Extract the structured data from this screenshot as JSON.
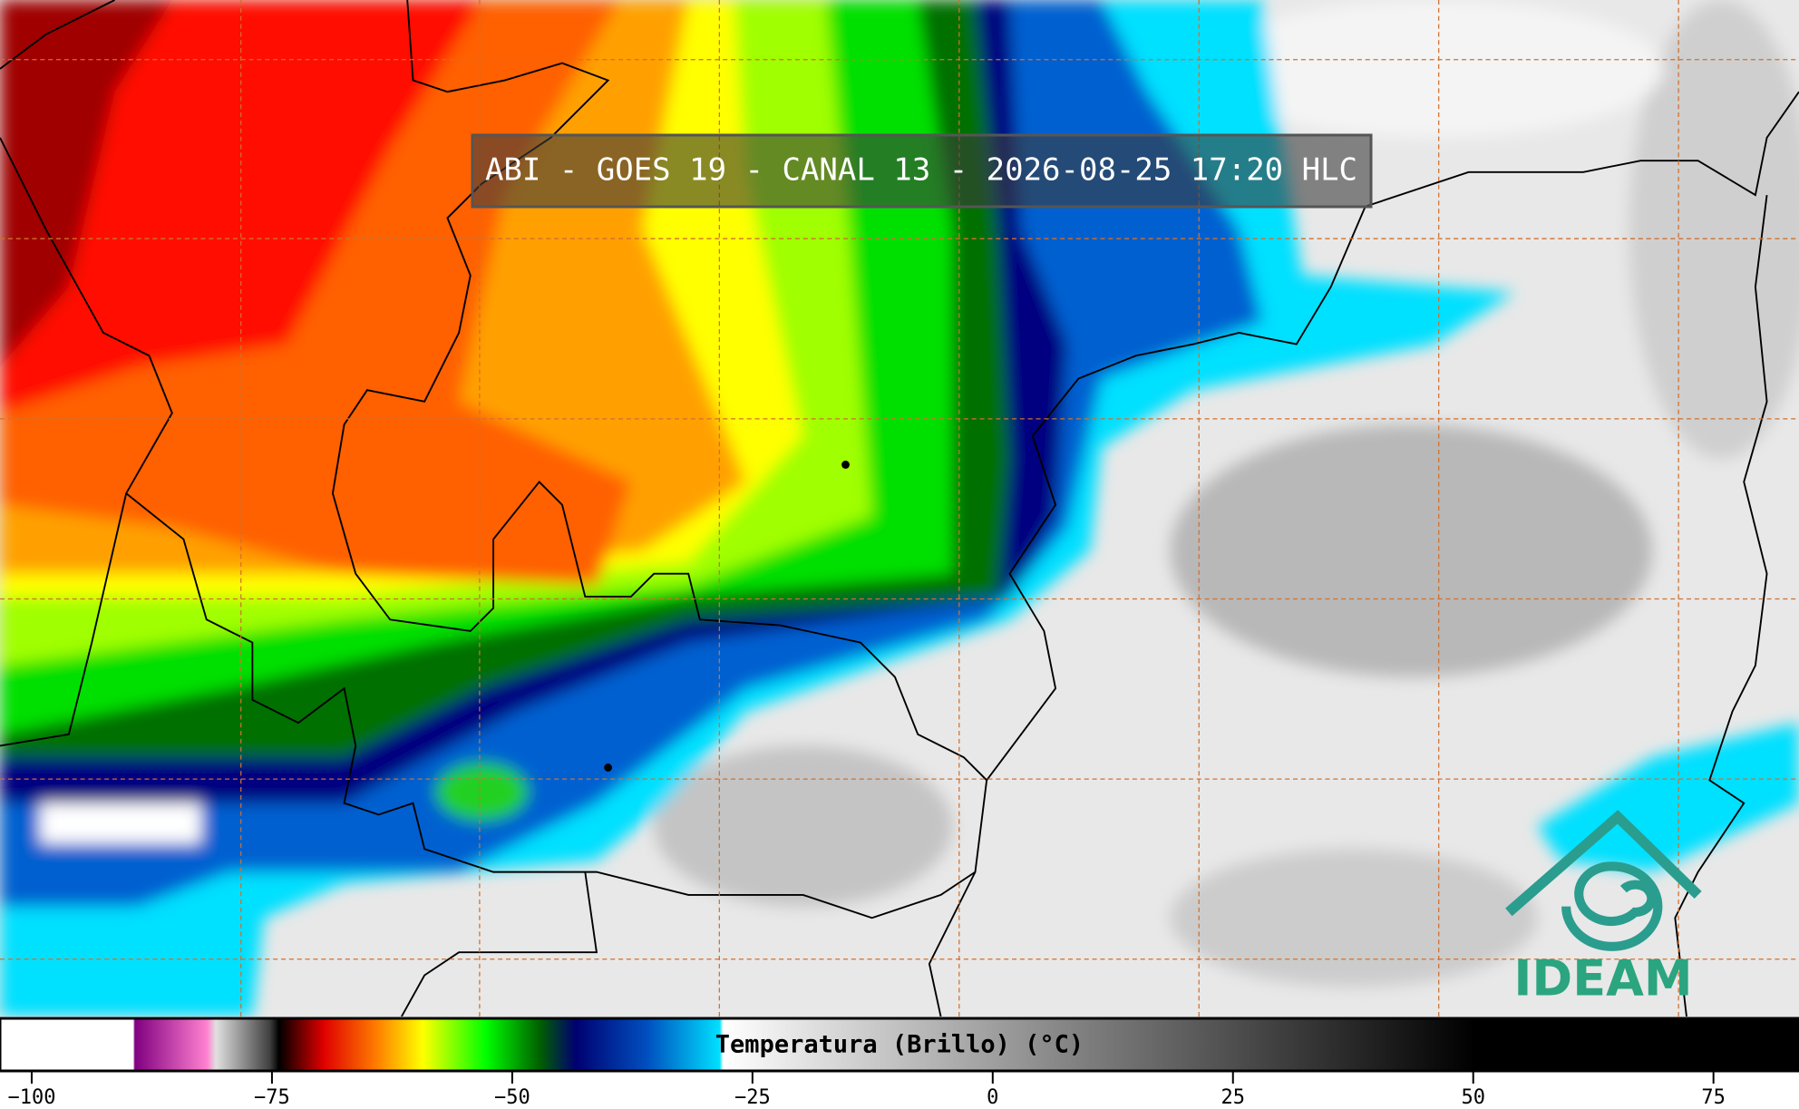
{
  "title": "ABI - GOES 19 - CANAL 13 - 2026-08-25 17:20 HLC",
  "colorbar": {
    "label": "Temperatura (Brillo) (°C)",
    "xlim": [
      -103.3,
      83.9
    ],
    "xticks": [
      {
        "value": -100,
        "label": "−100"
      },
      {
        "value": -75,
        "label": "−75"
      },
      {
        "value": -50,
        "label": "−50"
      },
      {
        "value": -25,
        "label": "−25"
      },
      0,
      25,
      50,
      75
    ]
  },
  "logo": "IDEAM"
}
